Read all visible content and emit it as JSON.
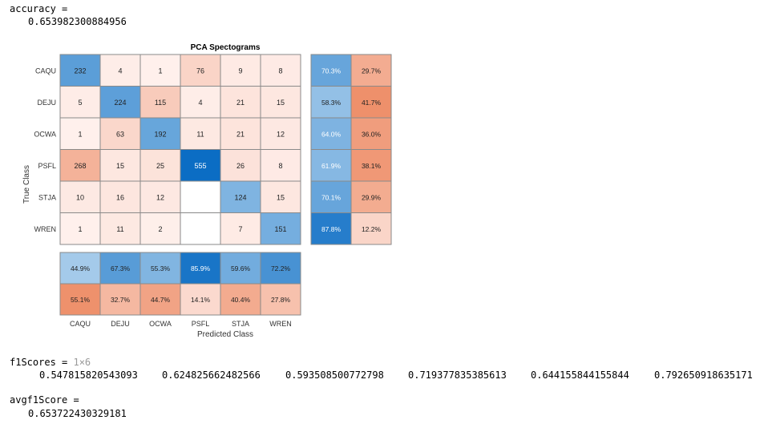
{
  "console": {
    "accuracy_label": "accuracy =",
    "accuracy_value": "0.653982300884956",
    "f1_label": "f1Scores =",
    "f1_dims": "1×6",
    "f1_values": [
      "0.547815820543093",
      "0.624825662482566",
      "0.593508500772798",
      "0.719377835385613",
      "0.644155844155844",
      "0.792650918635171"
    ],
    "avgf1_label": "avgf1Score =",
    "avgf1_value": "0.653722430329181"
  },
  "chart_data": {
    "type": "heatmap",
    "title": "PCA Spectograms",
    "xlabel": "Predicted Class",
    "ylabel": "True Class",
    "classes": [
      "CAQU",
      "DEJU",
      "OCWA",
      "PSFL",
      "STJA",
      "WREN"
    ],
    "matrix": [
      [
        232,
        4,
        1,
        76,
        9,
        8
      ],
      [
        5,
        224,
        115,
        4,
        21,
        15
      ],
      [
        1,
        63,
        192,
        11,
        21,
        12
      ],
      [
        268,
        15,
        25,
        555,
        26,
        8
      ],
      [
        10,
        16,
        12,
        null,
        124,
        15
      ],
      [
        1,
        11,
        2,
        null,
        7,
        151
      ]
    ],
    "row_summary": [
      [
        "70.3%",
        "29.7%"
      ],
      [
        "58.3%",
        "41.7%"
      ],
      [
        "64.0%",
        "36.0%"
      ],
      [
        "61.9%",
        "38.1%"
      ],
      [
        "70.1%",
        "29.9%"
      ],
      [
        "87.8%",
        "12.2%"
      ]
    ],
    "column_summary": [
      [
        "44.9%",
        "55.1%"
      ],
      [
        "67.3%",
        "32.7%"
      ],
      [
        "55.3%",
        "44.7%"
      ],
      [
        "85.9%",
        "14.1%"
      ],
      [
        "59.6%",
        "40.4%"
      ],
      [
        "72.2%",
        "27.8%"
      ]
    ],
    "colors": {
      "diag_max": "#0b6dc4",
      "diag_min": "#cfe5f5",
      "off_max": "#ee8f6a",
      "off_min": "#fff2ef",
      "border": "#8a8a8a"
    }
  }
}
